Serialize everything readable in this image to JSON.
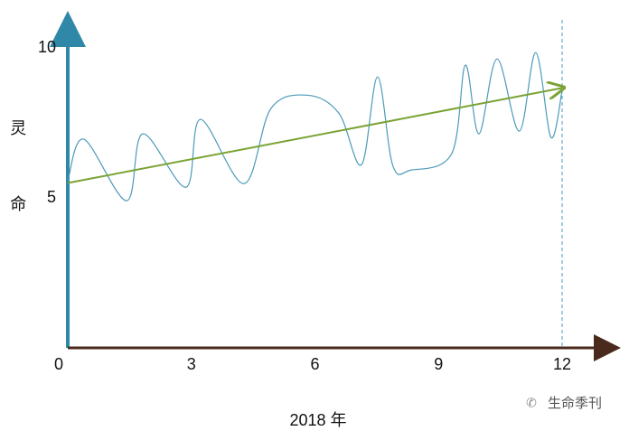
{
  "chart_data": {
    "type": "line",
    "y_label": "灵命",
    "x_label": "2018 年",
    "watermark": "生命季刊",
    "xlim": [
      0,
      12
    ],
    "ylim": [
      0,
      10.7
    ],
    "xticks": [
      0,
      3,
      6,
      9,
      12
    ],
    "yticks": [
      5,
      10
    ],
    "series": [
      {
        "color": "#4b9ab9",
        "smooth": true,
        "x": [
          0,
          0.39,
          1.43,
          1.82,
          2.87,
          3.22,
          4.28,
          4.93,
          5.81,
          6.58,
          7.13,
          7.52,
          7.89,
          8.33,
          9.32,
          9.65,
          9.98,
          10.42,
          10.96,
          11.36,
          11.73,
          12
        ],
        "values": [
          5.57,
          6.96,
          4.91,
          7.14,
          5.36,
          7.62,
          5.48,
          7.98,
          8.43,
          7.83,
          6.11,
          9.04,
          6.08,
          5.93,
          6.48,
          9.43,
          7.14,
          9.64,
          7.23,
          9.85,
          7.02,
          8.58
        ]
      },
      {
        "color": "#7aa335",
        "arrow": true,
        "x": [
          0,
          12
        ],
        "values": [
          5.5,
          8.67
        ]
      }
    ]
  }
}
